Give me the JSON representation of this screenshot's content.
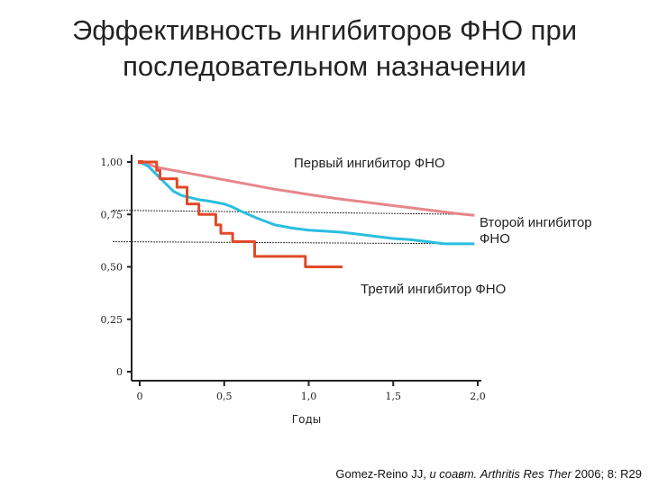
{
  "title": {
    "line1": "Эффективность ингибиторов ФНО при",
    "line2": "последовательном назначении"
  },
  "citation": {
    "authors": "Gomez-Reino JJ, ",
    "etal_journal": "и соавт. Arthritis Res Ther",
    "rest": " 2006; 8: R29"
  },
  "chart_data": {
    "type": "line",
    "title": "Эффективность ингибиторов ФНО при последовательном назначении",
    "xlabel": "Годы",
    "ylabel": "",
    "xlim": [
      0,
      2.0
    ],
    "ylim": [
      0,
      1.0
    ],
    "x_ticks": [
      {
        "value": 0,
        "label": "0"
      },
      {
        "value": 0.5,
        "label": "0,5"
      },
      {
        "value": 1.0,
        "label": "1,0"
      },
      {
        "value": 1.5,
        "label": "1,5"
      },
      {
        "value": 2.0,
        "label": "2,0"
      }
    ],
    "y_ticks": [
      {
        "value": 1.0,
        "label": "1,00"
      },
      {
        "value": 0.75,
        "label": "0,75"
      },
      {
        "value": 0.5,
        "label": "0,50"
      },
      {
        "value": 0.25,
        "label": "0,25"
      },
      {
        "value": 0,
        "label": "0"
      }
    ],
    "grid": false,
    "series": [
      {
        "name": "Первый ингибитор ФНО",
        "color": "#e8858c",
        "label_lines": [
          "Первый ингибитор ФНО"
        ],
        "points": [
          [
            0,
            1.0
          ],
          [
            0.05,
            0.99
          ],
          [
            0.1,
            0.975
          ],
          [
            0.2,
            0.96
          ],
          [
            0.3,
            0.945
          ],
          [
            0.4,
            0.93
          ],
          [
            0.5,
            0.915
          ],
          [
            0.6,
            0.9
          ],
          [
            0.7,
            0.885
          ],
          [
            0.8,
            0.87
          ],
          [
            0.9,
            0.858
          ],
          [
            1.0,
            0.845
          ],
          [
            1.1,
            0.833
          ],
          [
            1.2,
            0.822
          ],
          [
            1.3,
            0.812
          ],
          [
            1.4,
            0.802
          ],
          [
            1.5,
            0.792
          ],
          [
            1.6,
            0.782
          ],
          [
            1.7,
            0.772
          ],
          [
            1.8,
            0.762
          ],
          [
            1.9,
            0.752
          ],
          [
            1.98,
            0.746
          ]
        ]
      },
      {
        "name": "Второй ингибитор ФНО",
        "color": "#2bbde0",
        "label_lines": [
          "Второй ингибитор",
          "ФНО"
        ],
        "points": [
          [
            0,
            1.0
          ],
          [
            0.05,
            0.98
          ],
          [
            0.1,
            0.94
          ],
          [
            0.15,
            0.9
          ],
          [
            0.2,
            0.86
          ],
          [
            0.25,
            0.84
          ],
          [
            0.3,
            0.83
          ],
          [
            0.35,
            0.82
          ],
          [
            0.4,
            0.815
          ],
          [
            0.5,
            0.8
          ],
          [
            0.55,
            0.785
          ],
          [
            0.6,
            0.765
          ],
          [
            0.7,
            0.73
          ],
          [
            0.8,
            0.7
          ],
          [
            0.9,
            0.685
          ],
          [
            1.0,
            0.675
          ],
          [
            1.1,
            0.67
          ],
          [
            1.2,
            0.665
          ],
          [
            1.3,
            0.655
          ],
          [
            1.4,
            0.645
          ],
          [
            1.5,
            0.635
          ],
          [
            1.6,
            0.63
          ],
          [
            1.7,
            0.62
          ],
          [
            1.8,
            0.61
          ],
          [
            1.9,
            0.61
          ],
          [
            1.98,
            0.61
          ]
        ]
      },
      {
        "name": "Третий ингибитор ФНО",
        "color": "#e04a28",
        "label_lines": [
          "Третий ингибитор ФНО"
        ],
        "points": [
          [
            0,
            1.0
          ],
          [
            0.1,
            1.0
          ],
          [
            0.1,
            0.96
          ],
          [
            0.12,
            0.96
          ],
          [
            0.12,
            0.92
          ],
          [
            0.22,
            0.92
          ],
          [
            0.22,
            0.88
          ],
          [
            0.28,
            0.88
          ],
          [
            0.28,
            0.8
          ],
          [
            0.35,
            0.8
          ],
          [
            0.35,
            0.75
          ],
          [
            0.45,
            0.75
          ],
          [
            0.45,
            0.7
          ],
          [
            0.48,
            0.7
          ],
          [
            0.48,
            0.66
          ],
          [
            0.55,
            0.66
          ],
          [
            0.55,
            0.62
          ],
          [
            0.68,
            0.62
          ],
          [
            0.68,
            0.55
          ],
          [
            0.98,
            0.55
          ],
          [
            0.98,
            0.5
          ],
          [
            1.2,
            0.5
          ]
        ]
      }
    ],
    "reference_lines": [
      {
        "from": [
          0,
          0.77
        ],
        "to": [
          1.98,
          0.75
        ]
      },
      {
        "from": [
          0,
          0.62
        ],
        "to": [
          1.98,
          0.61
        ]
      }
    ]
  }
}
